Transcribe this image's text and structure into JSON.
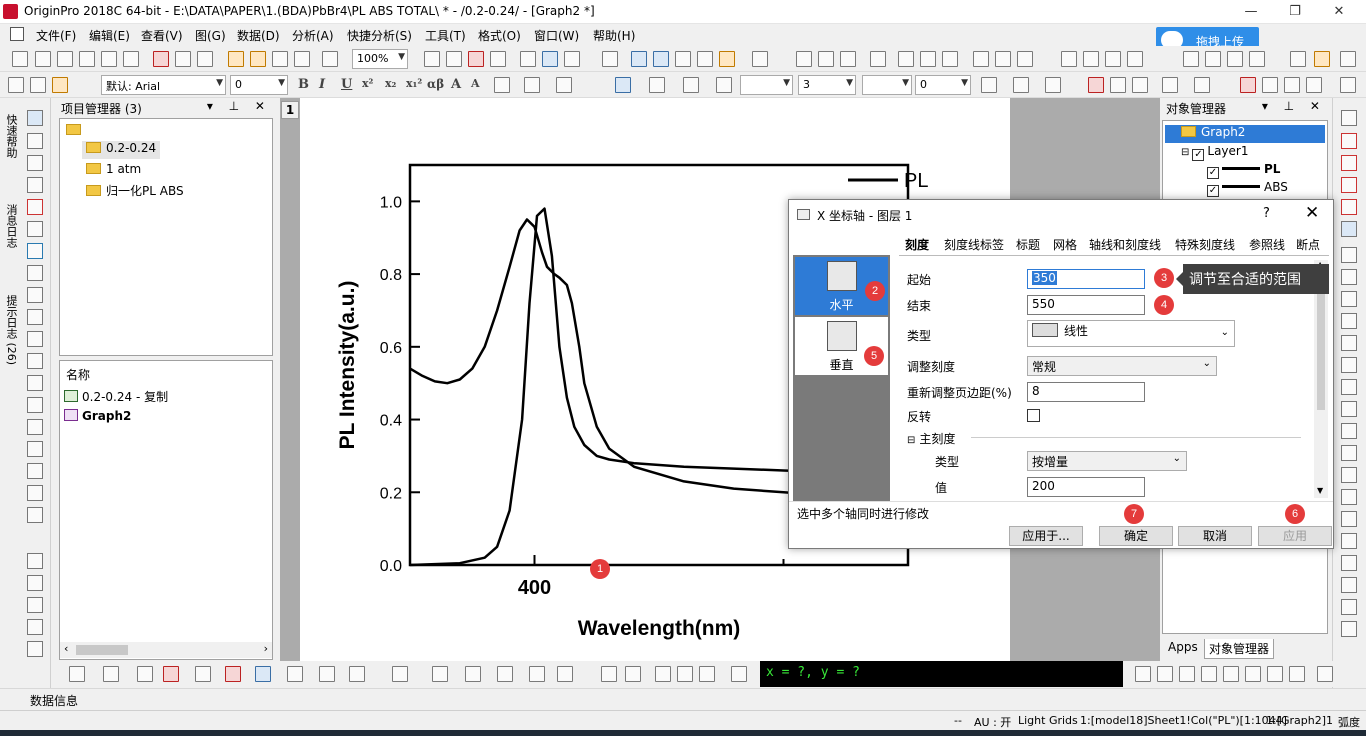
{
  "window": {
    "title": "OriginPro 2018C 64-bit - E:\\DATA\\PAPER\\1.(BDA)PbBr4\\PL ABS TOTAL\\ * - /0.2-0.24/ - [Graph2 *]",
    "minimize": "—",
    "restore": "❐",
    "close": "✕"
  },
  "menu": [
    "文件(F)",
    "编辑(E)",
    "查看(V)",
    "图(G)",
    "数据(D)",
    "分析(A)",
    "快捷分析(S)",
    "工具(T)",
    "格式(O)",
    "窗口(W)",
    "帮助(H)"
  ],
  "cloud_button": "拖拽上传",
  "toolbar": {
    "zoom": "100%",
    "font": "默认: Arial",
    "font_size": "0",
    "line_width": "3",
    "line_size2": "0",
    "format_letters": [
      "B",
      "I",
      "U",
      "x²",
      "x₂",
      "x₁²",
      "αβ",
      "A",
      "A"
    ]
  },
  "left_tabs": [
    "快速帮助",
    "消息日志",
    "提示日志 (26)"
  ],
  "project": {
    "title": "项目管理器 (3)",
    "folders": [
      "0.2-0.24",
      "1 atm",
      "归一化PL ABS"
    ],
    "list_header": "名称",
    "list_items": [
      "0.2-0.24 - 复制",
      "Graph2"
    ]
  },
  "graph": {
    "layer_num": "1",
    "legend": [
      "PL",
      "ABS"
    ]
  },
  "chart_data": {
    "type": "line",
    "xlabel": "Wavelength(nm)",
    "ylabel": "PL Intensity(a.u.)",
    "xlim": [
      350,
      550
    ],
    "ylim": [
      0,
      1.1
    ],
    "xticks": [
      400
    ],
    "yticks": [
      0.0,
      0.2,
      0.4,
      0.6,
      0.8,
      1.0
    ],
    "series": [
      {
        "name": "PL",
        "x": [
          350,
          370,
          380,
          385,
          390,
          395,
          398,
          401,
          404,
          407,
          410,
          413,
          416,
          420,
          425,
          430,
          440,
          460,
          480,
          500,
          520
        ],
        "y": [
          0.0,
          0.005,
          0.02,
          0.05,
          0.15,
          0.4,
          0.72,
          0.96,
          0.98,
          0.85,
          0.6,
          0.46,
          0.38,
          0.33,
          0.3,
          0.29,
          0.28,
          0.27,
          0.265,
          0.26,
          0.255
        ]
      },
      {
        "name": "ABS",
        "x": [
          350,
          355,
          360,
          365,
          370,
          375,
          380,
          385,
          390,
          394,
          397,
          400,
          403,
          405,
          408,
          410,
          413,
          415,
          418,
          420,
          425,
          430,
          440,
          460,
          480,
          500,
          520
        ],
        "y": [
          0.54,
          0.52,
          0.505,
          0.5,
          0.51,
          0.54,
          0.6,
          0.7,
          0.82,
          0.92,
          0.95,
          0.93,
          0.86,
          0.82,
          0.8,
          0.79,
          0.77,
          0.72,
          0.6,
          0.5,
          0.38,
          0.32,
          0.27,
          0.23,
          0.21,
          0.2,
          0.19
        ]
      }
    ]
  },
  "objects": {
    "title": "对象管理器",
    "graph": "Graph2",
    "layer": "Layer1",
    "plots": [
      "PL",
      "ABS"
    ],
    "tabs": [
      "Apps",
      "对象管理器"
    ]
  },
  "dialog": {
    "title": "X 坐标轴 - 图层 1",
    "help": "?",
    "close": "✕",
    "nav": [
      "水平",
      "垂直"
    ],
    "tabs": [
      "刻度",
      "刻度线标签",
      "标题",
      "网格",
      "轴线和刻度线",
      "特殊刻度线",
      "参照线",
      "断点"
    ],
    "fields": {
      "start_label": "起始",
      "start_value": "350",
      "end_label": "结束",
      "end_value": "550",
      "type_label": "类型",
      "type_value": "线性",
      "rescale_label": "调整刻度",
      "rescale_value": "常规",
      "margin_label": "重新调整页边距(%)",
      "margin_value": "8",
      "reverse_label": "反转",
      "major_section": "主刻度",
      "major_type_label": "类型",
      "major_type_value": "按增量",
      "major_value_label": "值",
      "major_value": "200"
    },
    "footer_note": "选中多个轴同时进行修改",
    "buttons": {
      "apply_to": "应用于...",
      "ok": "确定",
      "cancel": "取消",
      "apply": "应用"
    }
  },
  "annotations": {
    "badges": [
      "1",
      "2",
      "3",
      "4",
      "5",
      "6",
      "7"
    ],
    "tooltip": "调节至合适的范围"
  },
  "readout": "x = ?, y = ?",
  "data_info": "数据信息",
  "status": {
    "dash": "--",
    "au": "AU : 开",
    "grids": "Light Grids",
    "col": "1:[model18]Sheet1!Col(\"PL\")[1:1044]",
    "graph": "1:[Graph2]1!1",
    "unit": "弧度"
  },
  "colors": {
    "accent": "#2e7bd6",
    "badge": "#e43b3b",
    "cloud": "#2f8ee8",
    "readout_bg": "#000000",
    "readout_fg": "#38e838"
  }
}
